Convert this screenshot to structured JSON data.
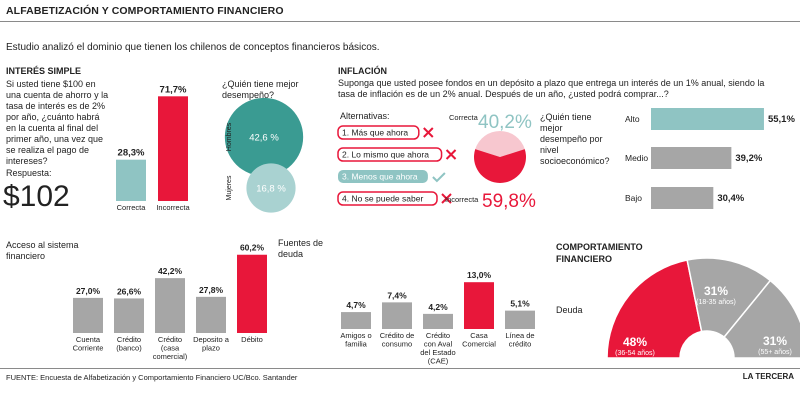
{
  "header": {
    "title": "ALFABETIZACIÓN Y COMPORTAMIENTO FINANCIERO",
    "subtitle": "Estudio analizó el dominio que tienen los chilenos de conceptos financieros básicos."
  },
  "interes": {
    "title": "INTERÉS SIMPLE",
    "question": "Si usted tiene $100 en una cuenta de ahorro y la tasa de interés es de 2% por año, ¿cuánto habrá en la cuenta al final del primer año, una vez que se realiza el pago de intereses?",
    "answer_label": "Respuesta:",
    "answer_value": "$102",
    "gender_question": "¿Quién tiene mejor desempeño?"
  },
  "inflacion": {
    "title": "INFLACIÓN",
    "question": "Suponga que usted posee fondos en un depósito a plazo que entrega un interés de un 1% anual, siendo la tasa de inflación es de un 2% anual. Después de un año, ¿usted podrá comprar...?",
    "alternatives_label": "Alternativas:",
    "alternatives": [
      {
        "label": "1. Más que ahora",
        "correct": false
      },
      {
        "label": "2. Lo mismo que ahora",
        "correct": false
      },
      {
        "label": "3. Menos que ahora",
        "correct": true
      },
      {
        "label": "4. No se puede saber",
        "correct": false
      }
    ],
    "ses_question": "¿Quién tiene mejor desempeño por nivel socioeconómico?"
  },
  "comportamiento": {
    "title": "COMPORTAMIENTO FINANCIERO",
    "deuda_label": "Deuda",
    "access_label": "Acceso al sistema financiero",
    "fuentes_label": "Fuentes de deuda"
  },
  "footer": {
    "source": "FUENTE: Encuesta de Alfabetización y Comportamiento Financiero UC/Bco. Santander",
    "brand": "LA TERCERA"
  },
  "colors": {
    "red": "#e8173a",
    "teal": "#8fc4c3",
    "teal_dark": "#3a9b92",
    "teal_light": "#a9d2d1",
    "gray": "#a6a6a6",
    "pink": "#f7c7cf"
  },
  "chart_data": [
    {
      "type": "bar",
      "id": "interes",
      "categories": [
        "Correcta",
        "Incorrecta"
      ],
      "values": [
        28.3,
        71.7
      ],
      "labels": [
        "28,3%",
        "71,7%"
      ],
      "colors": [
        "#8fc4c3",
        "#e8173a"
      ]
    },
    {
      "type": "bubble",
      "id": "genero",
      "categories": [
        "Hombres",
        "Mujeres"
      ],
      "values": [
        42.6,
        16.8
      ],
      "labels": [
        "42,6 %",
        "16,8 %"
      ]
    },
    {
      "type": "pie",
      "id": "inflacion",
      "categories": [
        "Correcta",
        "Incorrecta"
      ],
      "values": [
        40.2,
        59.8
      ],
      "labels": [
        "40,2%",
        "59,8%"
      ]
    },
    {
      "type": "bar",
      "id": "nse",
      "orientation": "horizontal",
      "categories": [
        "Alto",
        "Medio",
        "Bajo"
      ],
      "values": [
        55.1,
        39.2,
        30.4
      ],
      "labels": [
        "55,1%",
        "39,2%",
        "30,4%"
      ]
    },
    {
      "type": "bar",
      "id": "acceso",
      "categories": [
        "Cuenta Corriente",
        "Crédito (banco)",
        "Crédito (casa comercial)",
        "Deposito a plazo",
        "Débito"
      ],
      "values": [
        27.0,
        26.6,
        42.2,
        27.8,
        60.2
      ],
      "labels": [
        "27,0%",
        "26,6%",
        "42,2%",
        "27,8%",
        "60,2%"
      ]
    },
    {
      "type": "bar",
      "id": "fuentes",
      "categories": [
        "Amigos o familia",
        "Crédito de consumo",
        "Crédito con Aval del Estado (CAE)",
        "Casa Comercial",
        "Línea de crédito"
      ],
      "values": [
        4.7,
        7.4,
        4.2,
        13.0,
        5.1
      ],
      "labels": [
        "4,7%",
        "7,4%",
        "4,2%",
        "13,0%",
        "5,1%"
      ]
    },
    {
      "type": "pie",
      "id": "deuda",
      "categories": [
        "36-54 años",
        "18-35 años",
        "55+ años"
      ],
      "values": [
        48,
        31,
        31
      ],
      "labels": [
        "48%",
        "31%",
        "31%"
      ],
      "sublabels": [
        "(36-54 años)",
        "(18-35 años)",
        "(55+ años)"
      ]
    }
  ]
}
